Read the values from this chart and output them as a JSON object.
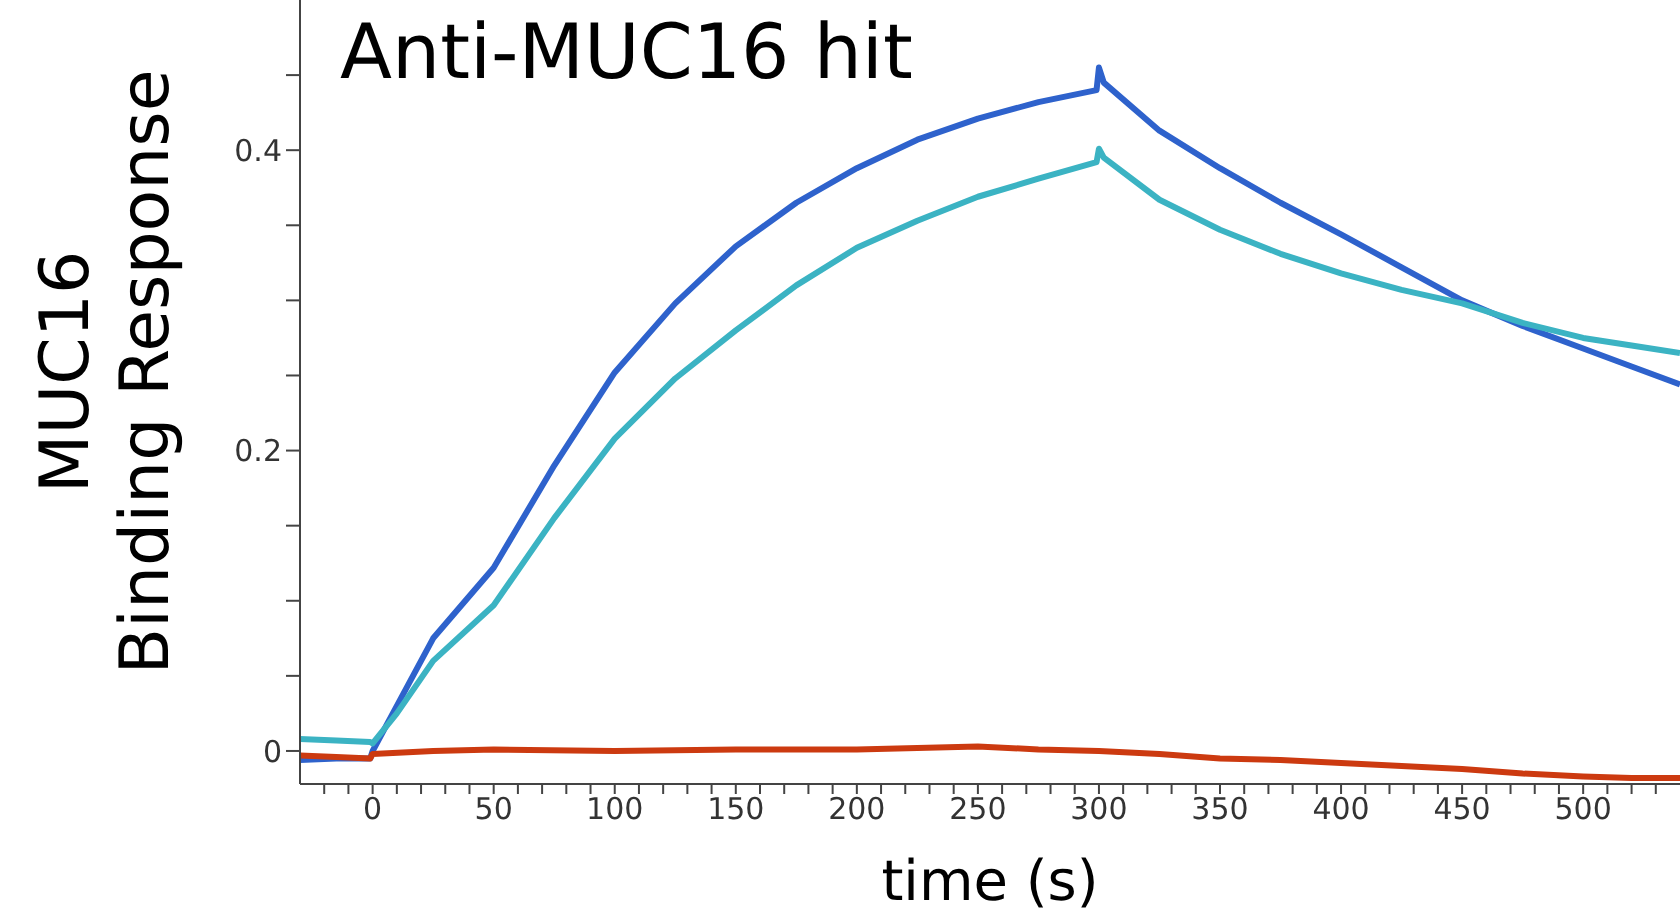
{
  "chart_data": {
    "type": "line",
    "title": "Anti-MUC16 hit",
    "xlabel": "time (s)",
    "ylabel": "MUC16\nBinding Response",
    "xlim": [
      -30,
      540
    ],
    "ylim": [
      -0.022,
      0.5
    ],
    "xticks": [
      {
        "value": -20,
        "label": null
      },
      {
        "value": -10,
        "label": null
      },
      0,
      {
        "value": 10,
        "label": null
      },
      {
        "value": 20,
        "label": null
      },
      {
        "value": 30,
        "label": null
      },
      {
        "value": 40,
        "label": null
      },
      50,
      {
        "value": 60,
        "label": null
      },
      {
        "value": 70,
        "label": null
      },
      {
        "value": 80,
        "label": null
      },
      {
        "value": 90,
        "label": null
      },
      100,
      {
        "value": 110,
        "label": null
      },
      {
        "value": 120,
        "label": null
      },
      {
        "value": 130,
        "label": null
      },
      {
        "value": 140,
        "label": null
      },
      150,
      {
        "value": 160,
        "label": null
      },
      {
        "value": 170,
        "label": null
      },
      {
        "value": 180,
        "label": null
      },
      {
        "value": 190,
        "label": null
      },
      200,
      {
        "value": 210,
        "label": null
      },
      {
        "value": 220,
        "label": null
      },
      {
        "value": 230,
        "label": null
      },
      {
        "value": 240,
        "label": null
      },
      250,
      {
        "value": 260,
        "label": null
      },
      {
        "value": 270,
        "label": null
      },
      {
        "value": 280,
        "label": null
      },
      {
        "value": 290,
        "label": null
      },
      300,
      {
        "value": 310,
        "label": null
      },
      {
        "value": 320,
        "label": null
      },
      {
        "value": 330,
        "label": null
      },
      {
        "value": 340,
        "label": null
      },
      350,
      {
        "value": 360,
        "label": null
      },
      {
        "value": 370,
        "label": null
      },
      {
        "value": 380,
        "label": null
      },
      {
        "value": 390,
        "label": null
      },
      400,
      {
        "value": 410,
        "label": null
      },
      {
        "value": 420,
        "label": null
      },
      {
        "value": 430,
        "label": null
      },
      {
        "value": 440,
        "label": null
      },
      450,
      {
        "value": 460,
        "label": null
      },
      {
        "value": 470,
        "label": null
      },
      {
        "value": 480,
        "label": null
      },
      {
        "value": 490,
        "label": null
      },
      500,
      {
        "value": 510,
        "label": null
      },
      {
        "value": 520,
        "label": null
      },
      {
        "value": 530,
        "label": null
      }
    ],
    "yticks": [
      0,
      {
        "value": 0.05,
        "label": null
      },
      {
        "value": 0.1,
        "label": null
      },
      {
        "value": 0.15,
        "label": null
      },
      0.2,
      {
        "value": 0.25,
        "label": null
      },
      {
        "value": 0.3,
        "label": null
      },
      {
        "value": 0.35,
        "label": null
      },
      0.4,
      {
        "value": 0.45,
        "label": null
      }
    ],
    "grid": false,
    "legend": false,
    "marker": "none",
    "line_style": "solid",
    "series": [
      {
        "color": "#2e62cc",
        "x": [
          -30,
          -15,
          -1,
          0,
          10,
          25,
          50,
          75,
          100,
          125,
          150,
          175,
          200,
          225,
          250,
          275,
          299,
          300,
          302,
          325,
          350,
          375,
          400,
          425,
          450,
          475,
          500,
          520,
          540
        ],
        "values": [
          -0.006,
          -0.005,
          -0.005,
          0,
          0.03,
          0.075,
          0.122,
          0.19,
          0.252,
          0.298,
          0.336,
          0.365,
          0.388,
          0.407,
          0.421,
          0.432,
          0.44,
          0.455,
          0.445,
          0.413,
          0.388,
          0.365,
          0.344,
          0.322,
          0.3,
          0.283,
          0.268,
          0.256,
          0.244
        ]
      },
      {
        "color": "#3bb3c3",
        "x": [
          -30,
          -15,
          -1,
          0,
          10,
          25,
          50,
          75,
          100,
          125,
          150,
          175,
          200,
          225,
          250,
          275,
          299,
          300,
          302,
          325,
          350,
          375,
          400,
          425,
          450,
          475,
          500,
          520,
          540
        ],
        "values": [
          0.008,
          0.007,
          0.006,
          0.005,
          0.025,
          0.06,
          0.097,
          0.155,
          0.208,
          0.248,
          0.28,
          0.31,
          0.335,
          0.353,
          0.369,
          0.381,
          0.392,
          0.401,
          0.395,
          0.367,
          0.347,
          0.331,
          0.318,
          0.307,
          0.298,
          0.285,
          0.275,
          0.27,
          0.265
        ]
      },
      {
        "color": "#cc3a10",
        "x": [
          -30,
          -15,
          -1,
          0,
          25,
          50,
          100,
          150,
          200,
          250,
          275,
          300,
          325,
          350,
          375,
          400,
          425,
          450,
          475,
          500,
          520,
          540
        ],
        "values": [
          -0.003,
          -0.004,
          -0.005,
          -0.002,
          0,
          0.001,
          0,
          0.001,
          0.001,
          0.003,
          0.001,
          0,
          -0.002,
          -0.005,
          -0.006,
          -0.008,
          -0.01,
          -0.012,
          -0.015,
          -0.017,
          -0.018,
          -0.018
        ]
      }
    ]
  }
}
